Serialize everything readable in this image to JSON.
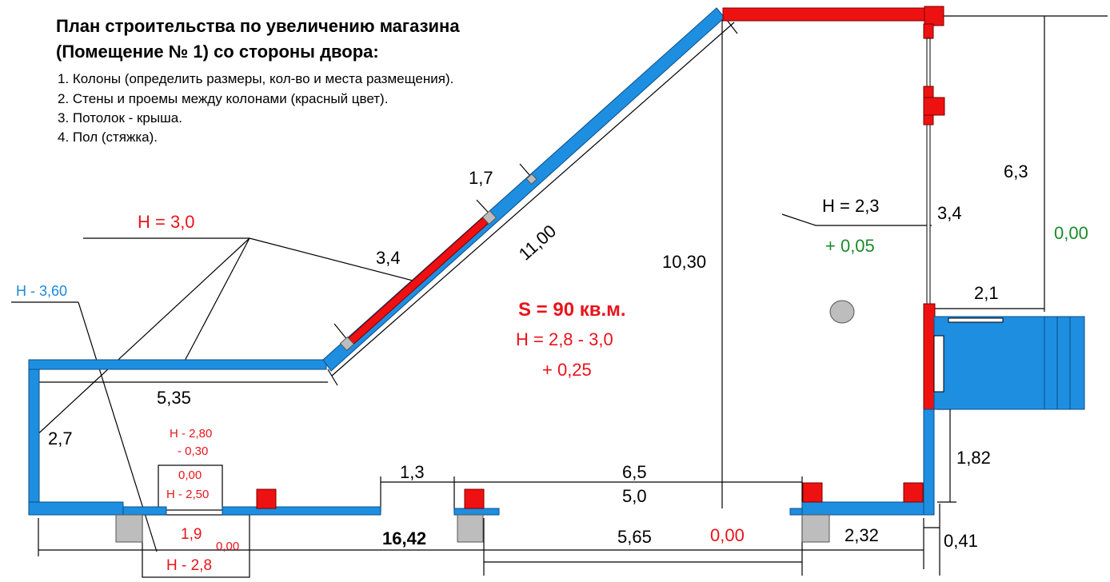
{
  "title": {
    "line1": "План строительства по увеличению магазина",
    "line2": "(Помещение № 1) со стороны двора:"
  },
  "notes": [
    "1. Колоны (определить размеры, кол-во и места размещения).",
    "2. Стены и проемы между колонами (красный цвет).",
    "3. Потолок - крыша.",
    "4. Пол (стяжка)."
  ],
  "labels": {
    "h_3_0": "H = 3,0",
    "h_3_60": "H - 3,60",
    "h_2_3": "H = 2,3",
    "plus_0_05": "+ 0,05",
    "area": "S = 90 кв.м.",
    "h_2_8_3_0": "H = 2,8 - 3,0",
    "plus_0_25": "+ 0,25",
    "h_2_80": "H - 2,80",
    "minus_0_30": "- 0,30",
    "zero_a": "0,00",
    "h_2_50": "H - 2,50",
    "one_nine": "1,9",
    "zero_b": "0,00",
    "h_2_8": "H - 2,8",
    "zero_bottom": "0,00",
    "zero_right": "0,00"
  },
  "dimensions": {
    "d1_7": "1,7",
    "d3_4_diag": "3,4",
    "d11_00": "11,00",
    "d10_30": "10,30",
    "d6_3": "6,3",
    "d3_4_right": "3,4",
    "d2_1": "2,1",
    "d5_35": "5,35",
    "d2_7": "2,7",
    "d1_3": "1,3",
    "d6_5": "6,5",
    "d5_0": "5,0",
    "d1_82": "1,82",
    "d16_42": "16,42",
    "d5_65": "5,65",
    "d2_32": "2,32",
    "d0_41": "0,41"
  },
  "colors": {
    "wall_blue": "#1e8ee0",
    "wall_red": "#ee1111",
    "column_grey": "#bdbdbd",
    "accent_red": "#e8141b",
    "accent_blue": "#1e88d6",
    "accent_green": "#1b8a2a"
  }
}
